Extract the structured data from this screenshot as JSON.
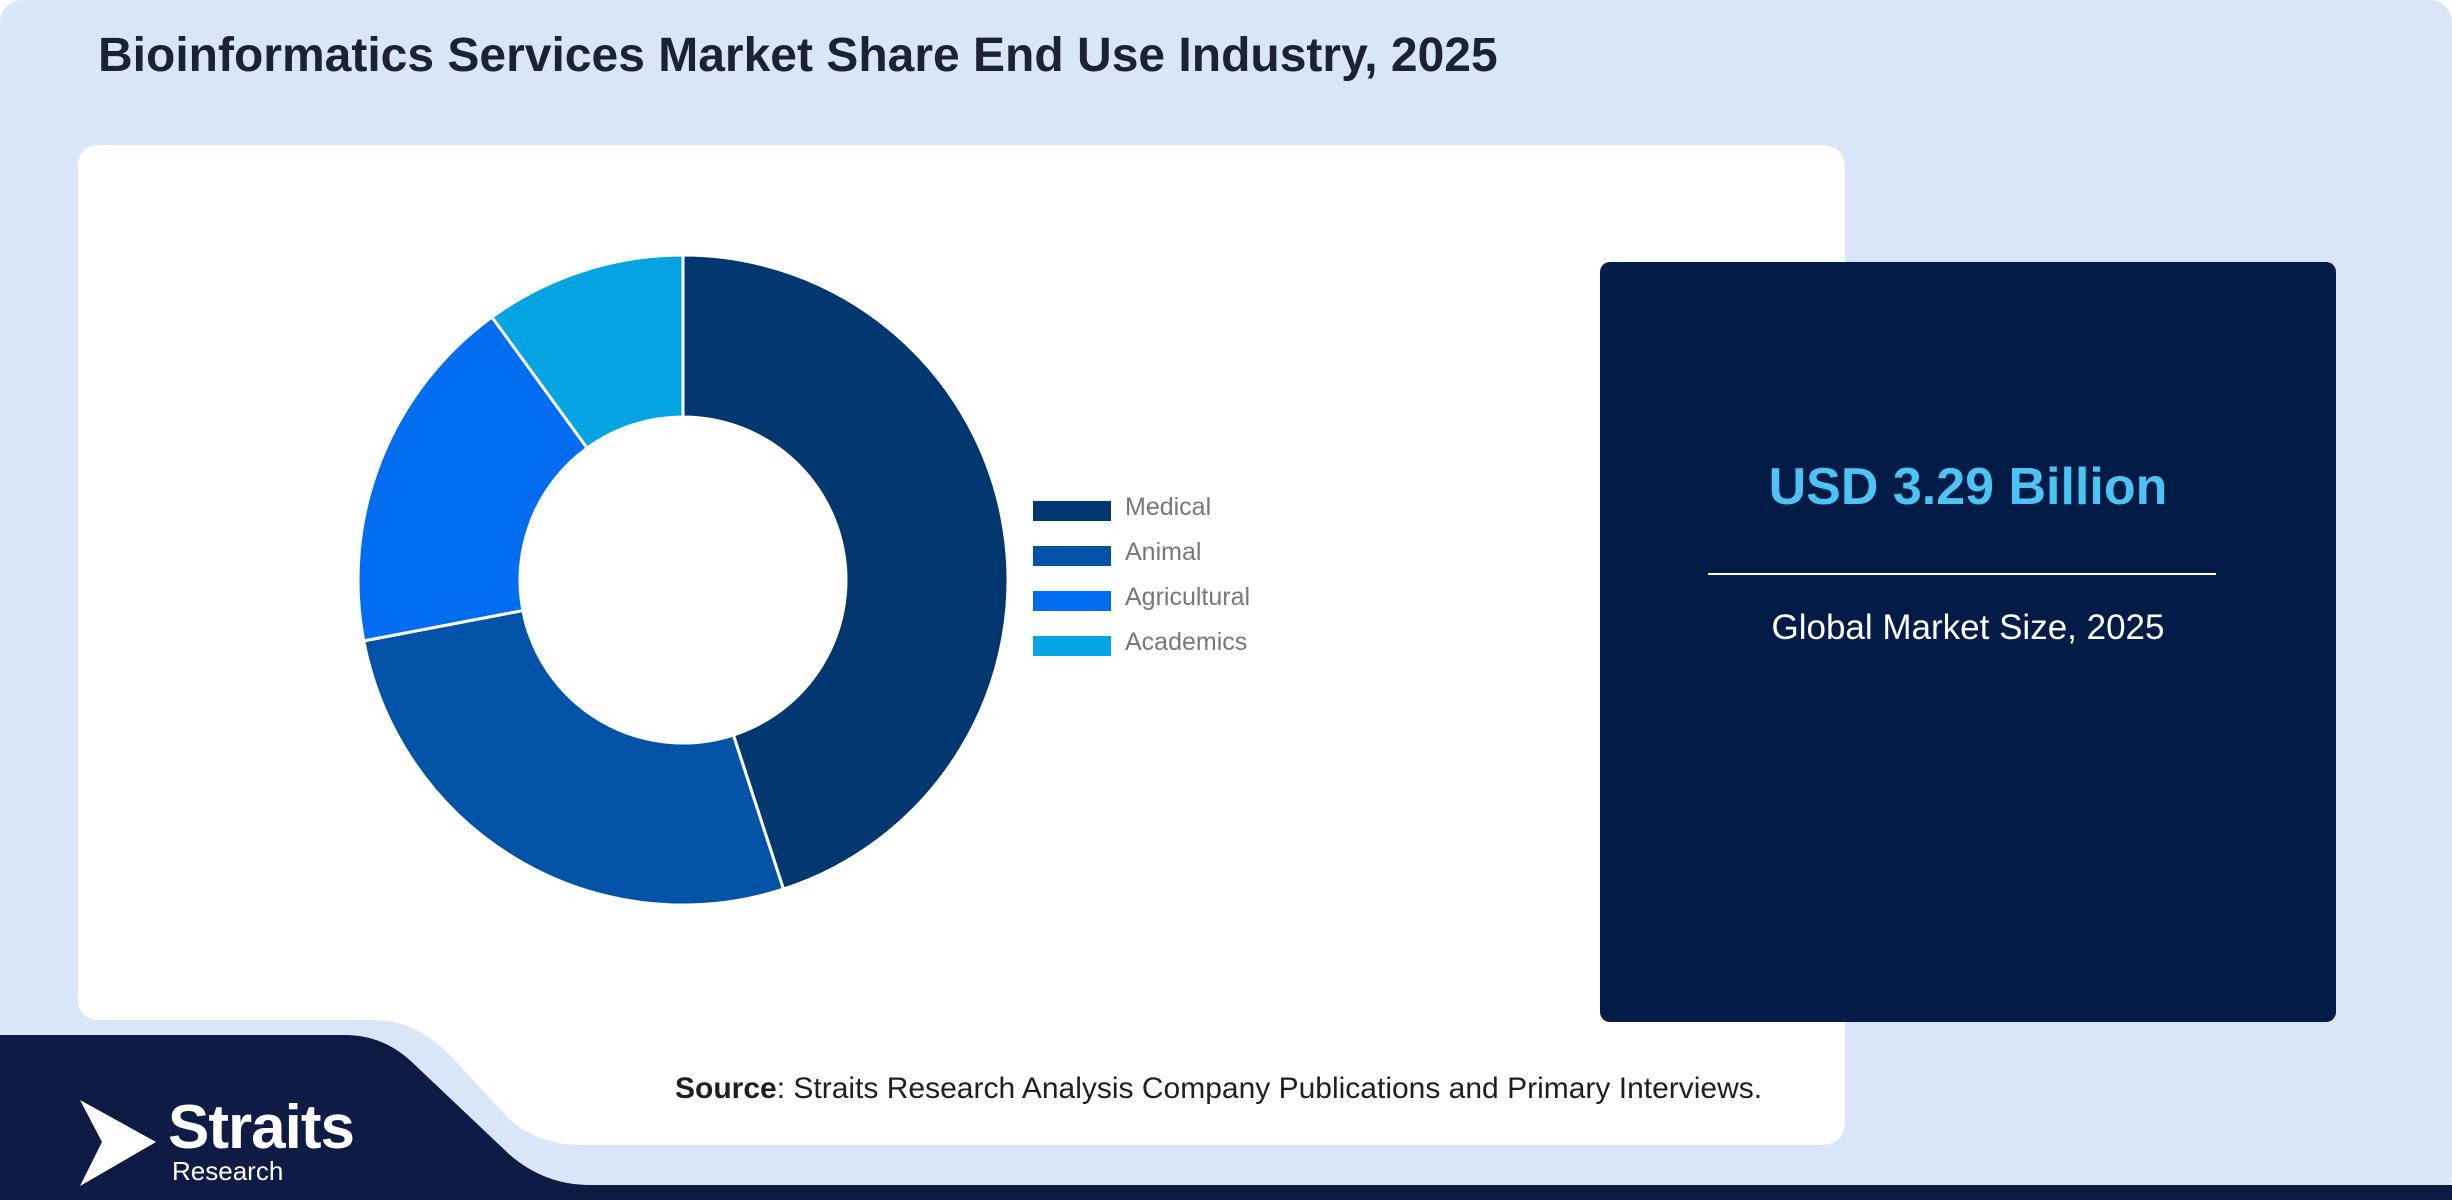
{
  "header": {
    "title": "Bioinformatics Services Market Share End Use Industry, 2025"
  },
  "colors": {
    "page_bg": "#dae6f8",
    "card_bg": "#ffffff",
    "footer_bg": "#0d1b45",
    "stat_bg": "#021c47",
    "stat_value": "#4cc3f3"
  },
  "chart_data": {
    "type": "pie",
    "donut": true,
    "title": "",
    "categories": [
      "Medical",
      "Animal",
      "Agricultural",
      "Academics"
    ],
    "values": [
      45,
      27,
      18,
      10
    ],
    "colors": [
      "#02386f",
      "#0153a7",
      "#026df0",
      "#04a4e3"
    ],
    "legend_position": "right"
  },
  "stat": {
    "value": "USD 3.29 Billion",
    "label": "Global Market Size, 2025"
  },
  "source": {
    "prefix": "Source",
    "text": ": Straits Research Analysis Company Publications and Primary Interviews."
  },
  "brand": {
    "name": "Straits",
    "sub": "Research",
    "logo_icon": "play-arrow-icon"
  }
}
